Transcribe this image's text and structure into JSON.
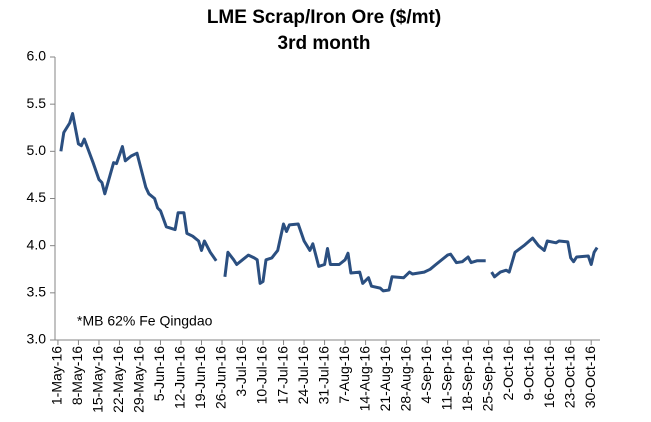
{
  "chart_data": {
    "type": "line",
    "title": "LME Scrap/Iron Ore ($/mt)",
    "subtitle": "3rd month",
    "annotation": "*MB 62% Fe Qingdao",
    "color": "#2b4f80",
    "x": [
      "2016-05-02",
      "2016-05-03",
      "2016-05-05",
      "2016-05-06",
      "2016-05-08",
      "2016-05-09",
      "2016-05-10",
      "2016-05-13",
      "2016-05-15",
      "2016-05-16",
      "2016-05-17",
      "2016-05-20",
      "2016-05-21",
      "2016-05-23",
      "2016-05-24",
      "2016-05-26",
      "2016-05-28",
      "2016-05-31",
      "2016-06-01",
      "2016-06-03",
      "2016-06-04",
      "2016-06-05",
      "2016-06-07",
      "2016-06-09",
      "2016-06-10",
      "2016-06-11",
      "2016-06-13",
      "2016-06-14",
      "2016-06-16",
      "2016-06-18",
      "2016-06-19",
      "2016-06-20",
      "2016-06-22",
      "2016-06-24",
      "2016-06-26",
      "2016-06-27",
      "2016-06-28",
      "2016-06-30",
      "2016-07-01",
      "2016-07-03",
      "2016-07-05",
      "2016-07-07",
      "2016-07-08",
      "2016-07-09",
      "2016-07-10",
      "2016-07-11",
      "2016-07-13",
      "2016-07-15",
      "2016-07-17",
      "2016-07-18",
      "2016-07-19",
      "2016-07-22",
      "2016-07-24",
      "2016-07-26",
      "2016-07-27",
      "2016-07-28",
      "2016-07-29",
      "2016-07-31",
      "2016-08-01",
      "2016-08-02",
      "2016-08-05",
      "2016-08-07",
      "2016-08-08",
      "2016-08-09",
      "2016-08-12",
      "2016-08-13",
      "2016-08-15",
      "2016-08-16",
      "2016-08-19",
      "2016-08-20",
      "2016-08-22",
      "2016-08-23",
      "2016-08-27",
      "2016-08-29",
      "2016-08-30",
      "2016-09-03",
      "2016-09-05",
      "2016-09-07",
      "2016-09-11",
      "2016-09-12",
      "2016-09-14",
      "2016-09-16",
      "2016-09-18",
      "2016-09-19",
      "2016-09-21",
      "2016-09-24",
      "2016-09-25",
      "2016-09-26",
      "2016-09-27",
      "2016-09-29",
      "2016-10-01",
      "2016-10-02",
      "2016-10-04",
      "2016-10-07",
      "2016-10-10",
      "2016-10-12",
      "2016-10-14",
      "2016-10-15",
      "2016-10-18",
      "2016-10-19",
      "2016-10-22",
      "2016-10-23",
      "2016-10-24",
      "2016-10-25",
      "2016-10-29",
      "2016-10-30",
      "2016-10-31",
      "2016-11-01"
    ],
    "values": [
      5.0,
      5.2,
      5.3,
      5.4,
      5.08,
      5.06,
      5.13,
      4.88,
      4.7,
      4.67,
      4.55,
      4.88,
      4.87,
      5.05,
      4.9,
      4.95,
      4.98,
      4.62,
      4.55,
      4.5,
      4.4,
      4.37,
      4.2,
      4.18,
      4.17,
      4.35,
      4.35,
      4.13,
      4.1,
      4.05,
      3.95,
      4.05,
      3.93,
      3.84,
      null,
      3.67,
      3.93,
      3.85,
      3.8,
      3.85,
      3.9,
      3.87,
      3.85,
      3.6,
      3.62,
      3.85,
      3.87,
      3.95,
      4.23,
      4.15,
      4.22,
      4.23,
      4.05,
      3.95,
      4.02,
      3.9,
      3.78,
      3.8,
      3.97,
      3.8,
      3.8,
      3.85,
      3.92,
      3.71,
      3.72,
      3.6,
      3.66,
      3.57,
      3.55,
      3.52,
      3.53,
      3.67,
      3.66,
      3.72,
      3.7,
      3.72,
      3.75,
      3.8,
      3.9,
      3.91,
      3.82,
      3.83,
      3.88,
      3.82,
      3.84,
      3.84,
      null,
      3.72,
      3.67,
      3.72,
      3.74,
      3.72,
      3.93,
      4.0,
      4.08,
      4.0,
      3.95,
      4.05,
      4.03,
      4.05,
      4.04,
      3.87,
      3.83,
      3.88,
      3.89,
      3.8,
      3.93,
      3.98
    ],
    "xlim": [
      "2016-04-30",
      "2016-11-02"
    ],
    "xticks": [
      {
        "value": "2016-05-01",
        "label": "1-May-16"
      },
      {
        "value": "2016-05-08",
        "label": "8-May-16"
      },
      {
        "value": "2016-05-15",
        "label": "15-May-16"
      },
      {
        "value": "2016-05-22",
        "label": "22-May-16"
      },
      {
        "value": "2016-05-29",
        "label": "29-May-16"
      },
      {
        "value": "2016-06-05",
        "label": "5-Jun-16"
      },
      {
        "value": "2016-06-12",
        "label": "12-Jun-16"
      },
      {
        "value": "2016-06-19",
        "label": "19-Jun-16"
      },
      {
        "value": "2016-06-26",
        "label": "26-Jun-16"
      },
      {
        "value": "2016-07-03",
        "label": "3-Jul-16"
      },
      {
        "value": "2016-07-10",
        "label": "10-Jul-16"
      },
      {
        "value": "2016-07-17",
        "label": "17-Jul-16"
      },
      {
        "value": "2016-07-24",
        "label": "24-Jul-16"
      },
      {
        "value": "2016-07-31",
        "label": "31-Jul-16"
      },
      {
        "value": "2016-08-07",
        "label": "7-Aug-16"
      },
      {
        "value": "2016-08-14",
        "label": "14-Aug-16"
      },
      {
        "value": "2016-08-21",
        "label": "21-Aug-16"
      },
      {
        "value": "2016-08-28",
        "label": "28-Aug-16"
      },
      {
        "value": "2016-09-04",
        "label": "4-Sep-16"
      },
      {
        "value": "2016-09-11",
        "label": "11-Sep-16"
      },
      {
        "value": "2016-09-18",
        "label": "18-Sep-16"
      },
      {
        "value": "2016-09-25",
        "label": "25-Sep-16"
      },
      {
        "value": "2016-10-02",
        "label": "2-Oct-16"
      },
      {
        "value": "2016-10-09",
        "label": "9-Oct-16"
      },
      {
        "value": "2016-10-16",
        "label": "16-Oct-16"
      },
      {
        "value": "2016-10-23",
        "label": "23-Oct-16"
      },
      {
        "value": "2016-10-30",
        "label": "30-Oct-16"
      }
    ],
    "ylim": [
      3,
      6
    ],
    "yticks": [
      {
        "value": 3,
        "label": "3.0"
      },
      {
        "value": 3.5,
        "label": "3.5"
      },
      {
        "value": 4,
        "label": "4.0"
      },
      {
        "value": 4.5,
        "label": "4.5"
      },
      {
        "value": 5,
        "label": "5.0"
      },
      {
        "value": 5.5,
        "label": "5.5"
      },
      {
        "value": 6,
        "label": "6.0"
      }
    ],
    "grid": false
  }
}
